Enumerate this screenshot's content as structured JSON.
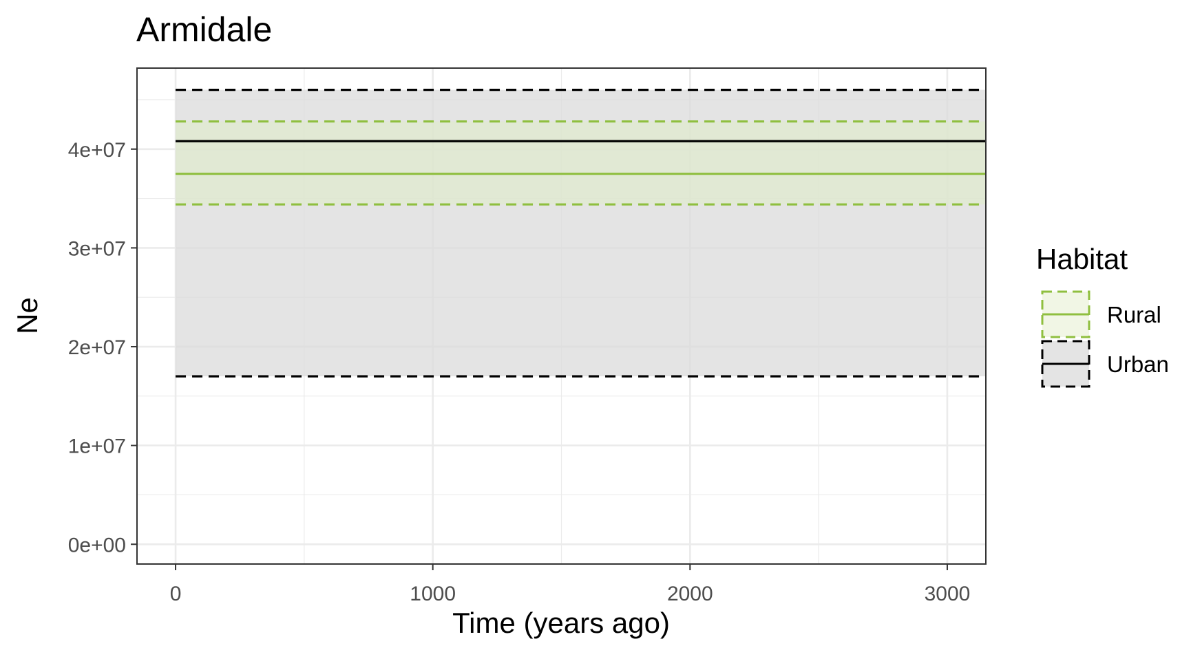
{
  "chart_data": {
    "type": "line",
    "title": "Armidale",
    "xlabel": "Time (years ago)",
    "ylabel": "Ne",
    "xlim": [
      -150,
      3150
    ],
    "ylim": [
      -2000000,
      48200000
    ],
    "x_ticks": [
      0,
      1000,
      2000,
      3000
    ],
    "x_tick_labels": [
      "0",
      "1000",
      "2000",
      "3000"
    ],
    "x_minor_ticks": [
      500,
      1500,
      2500
    ],
    "y_ticks": [
      0,
      10000000,
      20000000,
      30000000,
      40000000
    ],
    "y_tick_labels": [
      "0e+00",
      "1e+07",
      "2e+07",
      "3e+07",
      "4e+07"
    ],
    "y_minor_ticks": [
      5000000,
      15000000,
      25000000,
      35000000,
      45000000
    ],
    "grid": true,
    "legend": {
      "title": "Habitat",
      "position": "right",
      "entries": [
        "Rural",
        "Urban"
      ]
    },
    "series": [
      {
        "name": "Urban",
        "color": "#000000",
        "ribbon_fill": "#d9d9d9",
        "x": [
          0,
          3150
        ],
        "median": [
          40800000,
          40800000
        ],
        "lower": [
          17000000,
          17000000
        ],
        "upper": [
          46000000,
          46000000
        ]
      },
      {
        "name": "Rural",
        "color": "#8fbf3f",
        "ribbon_fill": "#dfecc6",
        "x": [
          0,
          3150
        ],
        "median": [
          37500000,
          37500000
        ],
        "lower": [
          34400000,
          34400000
        ],
        "upper": [
          42800000,
          42800000
        ]
      }
    ]
  }
}
